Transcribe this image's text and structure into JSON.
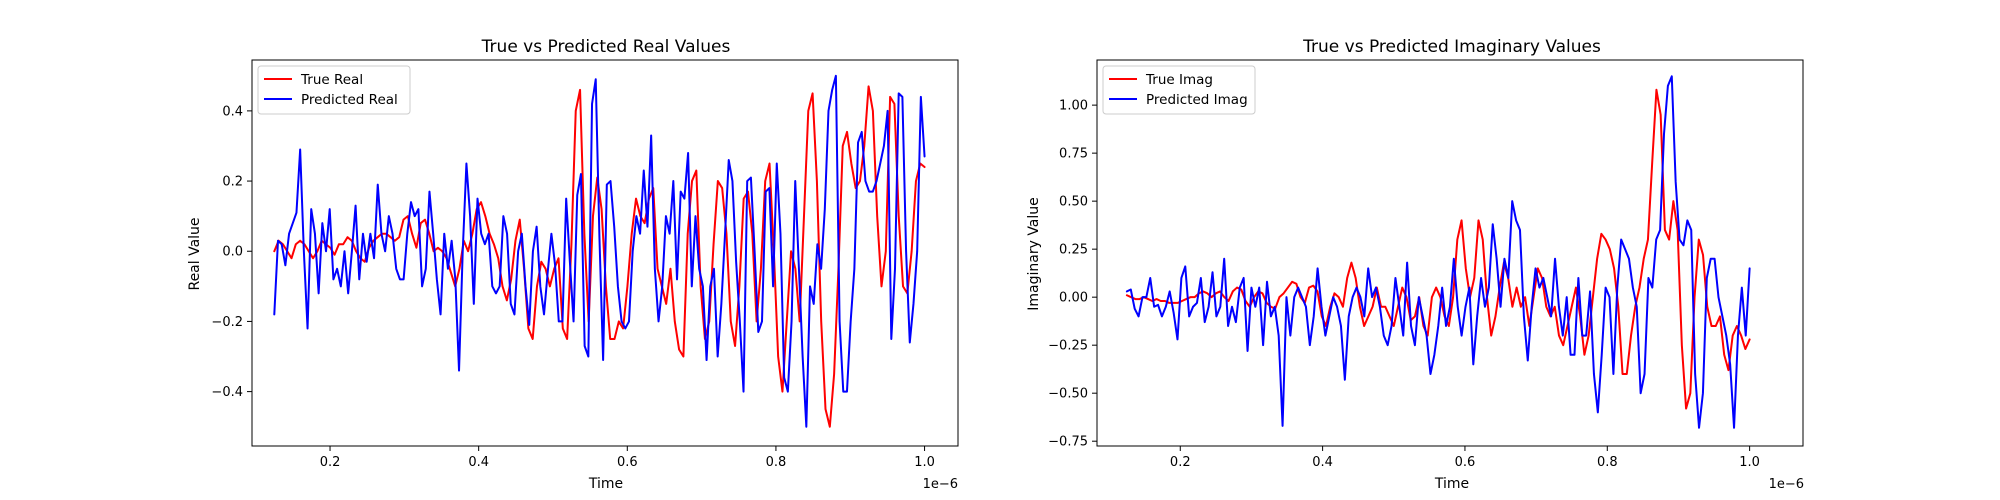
{
  "chart_data": [
    {
      "type": "line",
      "title": "True vs Predicted Real Values",
      "xlabel": "Time",
      "ylabel": "Real Value",
      "x_offset_label": "1e−6",
      "xlim": [
        0.095,
        1.045
      ],
      "ylim": [
        -0.555,
        0.545
      ],
      "xticks": [
        0.2,
        0.4,
        0.6,
        0.8,
        1.0
      ],
      "xtick_labels": [
        "0.2",
        "0.4",
        "0.6",
        "0.8",
        "1.0"
      ],
      "yticks": [
        -0.4,
        -0.2,
        0.0,
        0.2,
        0.4
      ],
      "ytick_labels": [
        "−0.4",
        "−0.2",
        "0.0",
        "0.2",
        "0.4"
      ],
      "grid": false,
      "legend": "upper-left",
      "x_range": [
        0.125,
        1.0
      ],
      "series": [
        {
          "name": "True Real",
          "color": "#ff0000",
          "values": [
            0.0,
            0.03,
            0.02,
            0.0,
            -0.02,
            0.02,
            0.03,
            0.02,
            0.0,
            -0.02,
            0.0,
            0.03,
            0.02,
            0.01,
            -0.01,
            0.02,
            0.02,
            0.04,
            0.03,
            0.0,
            -0.02,
            -0.03,
            0.01,
            0.03,
            0.04,
            0.05,
            0.05,
            0.04,
            0.03,
            0.04,
            0.09,
            0.1,
            0.05,
            0.01,
            0.08,
            0.09,
            0.05,
            0.0,
            0.01,
            0.0,
            -0.02,
            -0.06,
            -0.1,
            -0.05,
            0.03,
            0.0,
            0.05,
            0.12,
            0.14,
            0.1,
            0.05,
            0.02,
            -0.02,
            -0.1,
            -0.14,
            -0.08,
            0.03,
            0.09,
            -0.05,
            -0.22,
            -0.25,
            -0.1,
            -0.03,
            -0.05,
            -0.1,
            -0.05,
            -0.02,
            -0.22,
            -0.25,
            0.02,
            0.4,
            0.46,
            0.05,
            -0.2,
            0.1,
            0.21,
            0.12,
            -0.1,
            -0.25,
            -0.25,
            -0.2,
            -0.22,
            -0.1,
            0.05,
            0.15,
            0.1,
            0.08,
            0.15,
            0.18,
            -0.05,
            -0.1,
            -0.15,
            -0.05,
            -0.2,
            -0.28,
            -0.3,
            0.05,
            0.2,
            0.23,
            -0.1,
            -0.25,
            -0.2,
            0.02,
            0.2,
            0.18,
            0.05,
            -0.2,
            -0.27,
            -0.1,
            0.15,
            0.17,
            0.05,
            -0.2,
            -0.05,
            0.2,
            0.25,
            0.0,
            -0.3,
            -0.4,
            -0.2,
            0.0,
            -0.05,
            -0.2,
            0.1,
            0.4,
            0.45,
            0.2,
            -0.2,
            -0.45,
            -0.5,
            -0.35,
            -0.05,
            0.3,
            0.34,
            0.25,
            0.18,
            0.2,
            0.3,
            0.47,
            0.4,
            0.1,
            -0.1,
            0.0,
            0.44,
            0.42,
            0.1,
            -0.1,
            -0.12,
            0.0,
            0.2,
            0.25,
            0.24
          ],
          "samples": "x evenly spaced over x_range"
        },
        {
          "name": "Predicted Real",
          "color": "#0000ff",
          "values": [
            -0.18,
            0.03,
            0.02,
            -0.04,
            0.05,
            0.08,
            0.11,
            0.29,
            0.0,
            -0.22,
            0.12,
            0.05,
            -0.12,
            0.08,
            0.0,
            0.12,
            -0.08,
            -0.05,
            -0.1,
            0.0,
            -0.12,
            0.0,
            0.13,
            -0.08,
            0.05,
            -0.03,
            0.05,
            -0.02,
            0.19,
            0.05,
            0.0,
            0.1,
            0.05,
            -0.05,
            -0.08,
            -0.08,
            0.05,
            0.14,
            0.1,
            0.12,
            -0.1,
            -0.05,
            0.17,
            0.05,
            -0.08,
            -0.18,
            0.05,
            -0.05,
            0.03,
            -0.08,
            -0.34,
            0.0,
            0.25,
            0.1,
            -0.15,
            0.15,
            0.05,
            0.02,
            0.05,
            -0.1,
            -0.12,
            -0.1,
            0.1,
            0.05,
            -0.15,
            -0.18,
            0.0,
            0.05,
            -0.1,
            -0.21,
            0.0,
            0.07,
            -0.1,
            -0.18,
            -0.06,
            0.05,
            -0.04,
            -0.2,
            -0.2,
            0.15,
            -0.03,
            -0.2,
            0.16,
            0.22,
            -0.27,
            -0.3,
            0.42,
            0.49,
            0.04,
            -0.31,
            0.19,
            0.2,
            0.07,
            -0.1,
            -0.2,
            -0.22,
            -0.2,
            0.0,
            0.1,
            0.05,
            0.23,
            0.07,
            0.33,
            -0.05,
            -0.2,
            -0.1,
            0.1,
            0.05,
            0.2,
            -0.08,
            0.17,
            0.15,
            0.28,
            -0.1,
            0.1,
            -0.05,
            -0.1,
            -0.31,
            -0.1,
            -0.05,
            -0.3,
            -0.15,
            0.05,
            0.26,
            0.2,
            -0.03,
            -0.2,
            -0.4,
            0.2,
            0.21,
            0.0,
            -0.23,
            -0.2,
            0.17,
            0.18,
            -0.1,
            0.25,
            0.05,
            -0.36,
            -0.4,
            -0.2,
            0.2,
            -0.05,
            -0.3,
            -0.5,
            -0.1,
            -0.15,
            0.02,
            -0.05,
            0.12,
            0.4,
            0.46,
            0.5,
            -0.2,
            -0.4,
            -0.4,
            -0.2,
            -0.05,
            0.31,
            0.34,
            0.2,
            0.17,
            0.17,
            0.2,
            0.25,
            0.3,
            0.4,
            -0.25,
            -0.05,
            0.45,
            0.44,
            0.0,
            -0.26,
            -0.15,
            0.0,
            0.44,
            0.27
          ],
          "samples": "x evenly spaced over x_range"
        }
      ]
    },
    {
      "type": "line",
      "title": "True vs Predicted Imaginary Values",
      "xlabel": "Time",
      "ylabel": "Imaginary Value",
      "x_offset_label": "1e−6",
      "xlim": [
        0.083,
        1.075
      ],
      "ylim": [
        -0.775,
        1.235
      ],
      "xticks": [
        0.2,
        0.4,
        0.6,
        0.8,
        1.0
      ],
      "xtick_labels": [
        "0.2",
        "0.4",
        "0.6",
        "0.8",
        "1.0"
      ],
      "yticks": [
        -0.75,
        -0.5,
        -0.25,
        0.0,
        0.25,
        0.5,
        0.75,
        1.0
      ],
      "ytick_labels": [
        "−0.75",
        "−0.50",
        "−0.25",
        "0.00",
        "0.25",
        "0.50",
        "0.75",
        "1.00"
      ],
      "grid": false,
      "legend": "upper-left",
      "x_range": [
        0.125,
        1.0
      ],
      "series": [
        {
          "name": "True Imag",
          "color": "#ff0000",
          "values": [
            0.01,
            0.0,
            -0.01,
            -0.01,
            0.0,
            -0.01,
            -0.02,
            -0.01,
            -0.02,
            -0.02,
            -0.03,
            -0.03,
            -0.03,
            -0.02,
            -0.01,
            0.0,
            0.0,
            0.02,
            0.03,
            0.02,
            0.0,
            0.02,
            0.03,
            0.0,
            -0.02,
            0.03,
            0.05,
            0.04,
            -0.02,
            -0.05,
            0.0,
            0.03,
            0.02,
            -0.03,
            -0.05,
            -0.06,
            0.0,
            0.02,
            0.05,
            0.08,
            0.07,
            0.0,
            -0.03,
            0.05,
            0.06,
            0.03,
            -0.1,
            -0.15,
            -0.05,
            0.02,
            0.0,
            -0.05,
            0.1,
            0.18,
            0.1,
            -0.05,
            -0.15,
            -0.1,
            -0.05,
            0.05,
            -0.05,
            -0.05,
            -0.1,
            -0.15,
            -0.05,
            0.05,
            0.0,
            -0.12,
            -0.1,
            0.0,
            -0.15,
            -0.2,
            0.0,
            0.05,
            0.0,
            -0.1,
            -0.15,
            0.0,
            0.3,
            0.4,
            0.15,
            0.0,
            0.1,
            0.4,
            0.3,
            0.0,
            -0.2,
            -0.1,
            0.05,
            0.18,
            0.1,
            -0.05,
            0.05,
            -0.05,
            0.0,
            -0.15,
            0.0,
            0.15,
            0.1,
            -0.05,
            -0.1,
            -0.05,
            -0.2,
            -0.25,
            -0.15,
            -0.05,
            0.05,
            -0.1,
            -0.3,
            -0.2,
            0.0,
            0.2,
            0.33,
            0.3,
            0.25,
            0.15,
            -0.05,
            -0.4,
            -0.4,
            -0.2,
            -0.05,
            0.05,
            0.2,
            0.3,
            0.7,
            1.08,
            0.95,
            0.35,
            0.3,
            0.5,
            0.35,
            -0.25,
            -0.58,
            -0.5,
            0.0,
            0.3,
            0.22,
            -0.05,
            -0.15,
            -0.15,
            -0.1,
            -0.3,
            -0.38,
            -0.2,
            -0.15,
            -0.2,
            -0.27,
            -0.22
          ],
          "samples": "x evenly spaced over x_range"
        },
        {
          "name": "Predicted Imag",
          "color": "#0000ff",
          "values": [
            0.03,
            0.04,
            -0.06,
            -0.1,
            0.0,
            0.0,
            0.1,
            -0.05,
            -0.04,
            -0.1,
            -0.05,
            0.03,
            -0.08,
            -0.22,
            0.1,
            0.16,
            -0.1,
            -0.05,
            -0.03,
            0.1,
            -0.13,
            -0.05,
            0.13,
            -0.1,
            -0.05,
            0.2,
            -0.15,
            -0.05,
            -0.13,
            0.05,
            0.1,
            -0.28,
            0.05,
            -0.05,
            0.05,
            -0.25,
            0.08,
            -0.1,
            -0.05,
            -0.2,
            -0.67,
            0.0,
            -0.2,
            0.0,
            0.05,
            0.0,
            -0.05,
            -0.25,
            -0.1,
            0.15,
            -0.05,
            -0.2,
            -0.1,
            0.0,
            -0.05,
            -0.15,
            -0.43,
            -0.1,
            0.0,
            0.05,
            0.0,
            -0.1,
            0.15,
            0.0,
            0.05,
            -0.05,
            -0.2,
            -0.25,
            -0.15,
            0.1,
            -0.05,
            -0.2,
            0.18,
            -0.15,
            -0.25,
            0.0,
            -0.1,
            -0.2,
            -0.4,
            -0.3,
            -0.15,
            0.05,
            -0.15,
            -0.05,
            0.2,
            -0.05,
            -0.2,
            -0.05,
            0.05,
            -0.35,
            -0.1,
            0.1,
            -0.05,
            0.05,
            0.38,
            0.2,
            -0.05,
            0.2,
            0.1,
            0.5,
            0.4,
            0.35,
            -0.1,
            -0.33,
            -0.05,
            0.15,
            0.05,
            0.1,
            0.0,
            -0.1,
            0.2,
            -0.05,
            -0.2,
            0.0,
            -0.3,
            -0.3,
            0.1,
            -0.2,
            -0.2,
            0.03,
            -0.4,
            -0.6,
            -0.3,
            0.05,
            0.0,
            -0.4,
            0.05,
            0.3,
            0.25,
            0.2,
            0.05,
            -0.05,
            -0.5,
            -0.4,
            0.1,
            0.05,
            0.3,
            0.35,
            0.85,
            1.1,
            1.15,
            0.6,
            0.3,
            0.27,
            0.4,
            0.35,
            -0.4,
            -0.68,
            -0.5,
            0.1,
            0.2,
            0.2,
            0.0,
            -0.1,
            -0.2,
            -0.35,
            -0.68,
            -0.2,
            0.05,
            -0.2,
            0.15
          ],
          "samples": "x evenly spaced over x_range"
        }
      ]
    }
  ]
}
